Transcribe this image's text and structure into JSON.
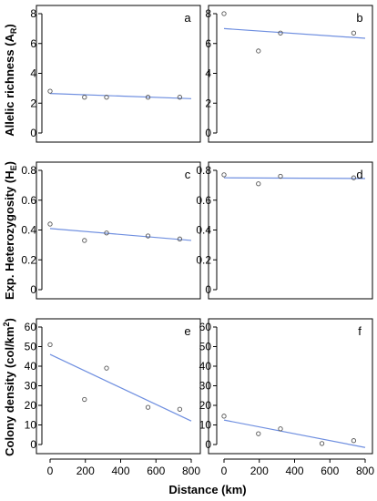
{
  "figure": {
    "xlabel": "Distance (km)",
    "ylabels": [
      {
        "main": "Allelic richness (A",
        "sub": "R",
        "tail": ")"
      },
      {
        "main": "Exp. Heterozygosity (H",
        "sub": "E",
        "tail": ")"
      },
      {
        "main": "Colony density (col/km",
        "sup": "2",
        "tail": ")"
      }
    ],
    "colors": {
      "fit_line": "#6f8fe0",
      "points": "#555555",
      "axes": "#000000"
    }
  },
  "chart_data": [
    {
      "panel": "a",
      "type": "scatter",
      "xlim": [
        0,
        800
      ],
      "ylim": [
        0,
        8
      ],
      "yticks": [
        0,
        2,
        4,
        6,
        8
      ],
      "points": [
        [
          0,
          2.8
        ],
        [
          195,
          2.4
        ],
        [
          320,
          2.4
        ],
        [
          555,
          2.4
        ],
        [
          735,
          2.4
        ]
      ],
      "fit": [
        [
          0,
          2.65
        ],
        [
          800,
          2.3
        ]
      ]
    },
    {
      "panel": "b",
      "type": "scatter",
      "xlim": [
        0,
        800
      ],
      "ylim": [
        0,
        8
      ],
      "yticks": [
        0,
        2,
        4,
        6,
        8
      ],
      "points": [
        [
          0,
          8.0
        ],
        [
          195,
          5.5
        ],
        [
          320,
          6.7
        ],
        [
          735,
          6.7
        ]
      ],
      "fit": [
        [
          0,
          7.0
        ],
        [
          800,
          6.35
        ]
      ]
    },
    {
      "panel": "c",
      "type": "scatter",
      "xlim": [
        0,
        800
      ],
      "ylim": [
        0,
        0.8
      ],
      "yticks": [
        0,
        0.2,
        0.4,
        0.6,
        0.8
      ],
      "yticklabels": [
        "0",
        "0.2",
        "0.4",
        "0.6",
        "0.8"
      ],
      "points": [
        [
          0,
          0.44
        ],
        [
          195,
          0.33
        ],
        [
          320,
          0.38
        ],
        [
          555,
          0.36
        ],
        [
          735,
          0.34
        ]
      ],
      "fit": [
        [
          0,
          0.41
        ],
        [
          800,
          0.33
        ]
      ]
    },
    {
      "panel": "d",
      "type": "scatter",
      "xlim": [
        0,
        800
      ],
      "ylim": [
        0,
        0.8
      ],
      "yticks": [
        0,
        0.2,
        0.4,
        0.6,
        0.8
      ],
      "yticklabels": [
        "0",
        "0.2",
        "0.4",
        "0.6",
        "0.8"
      ],
      "points": [
        [
          0,
          0.77
        ],
        [
          195,
          0.71
        ],
        [
          320,
          0.76
        ],
        [
          735,
          0.75
        ]
      ],
      "fit": [
        [
          0,
          0.75
        ],
        [
          800,
          0.745
        ]
      ]
    },
    {
      "panel": "e",
      "type": "scatter",
      "xlim": [
        0,
        800
      ],
      "ylim": [
        0,
        60
      ],
      "yticks": [
        0,
        10,
        20,
        30,
        40,
        50,
        60
      ],
      "xticks": [
        0,
        200,
        400,
        600,
        800
      ],
      "points": [
        [
          0,
          51
        ],
        [
          195,
          23
        ],
        [
          320,
          39
        ],
        [
          555,
          19
        ],
        [
          735,
          18
        ]
      ],
      "fit": [
        [
          0,
          46
        ],
        [
          800,
          12
        ]
      ]
    },
    {
      "panel": "f",
      "type": "scatter",
      "xlim": [
        0,
        800
      ],
      "ylim": [
        0,
        60
      ],
      "yticks": [
        0,
        10,
        20,
        30,
        40,
        50,
        60
      ],
      "xticks": [
        0,
        200,
        400,
        600,
        800
      ],
      "points": [
        [
          0,
          14.5
        ],
        [
          195,
          5.5
        ],
        [
          320,
          8
        ],
        [
          555,
          0.5
        ],
        [
          735,
          2
        ]
      ],
      "fit": [
        [
          0,
          12.5
        ],
        [
          800,
          -1.5
        ]
      ]
    }
  ]
}
